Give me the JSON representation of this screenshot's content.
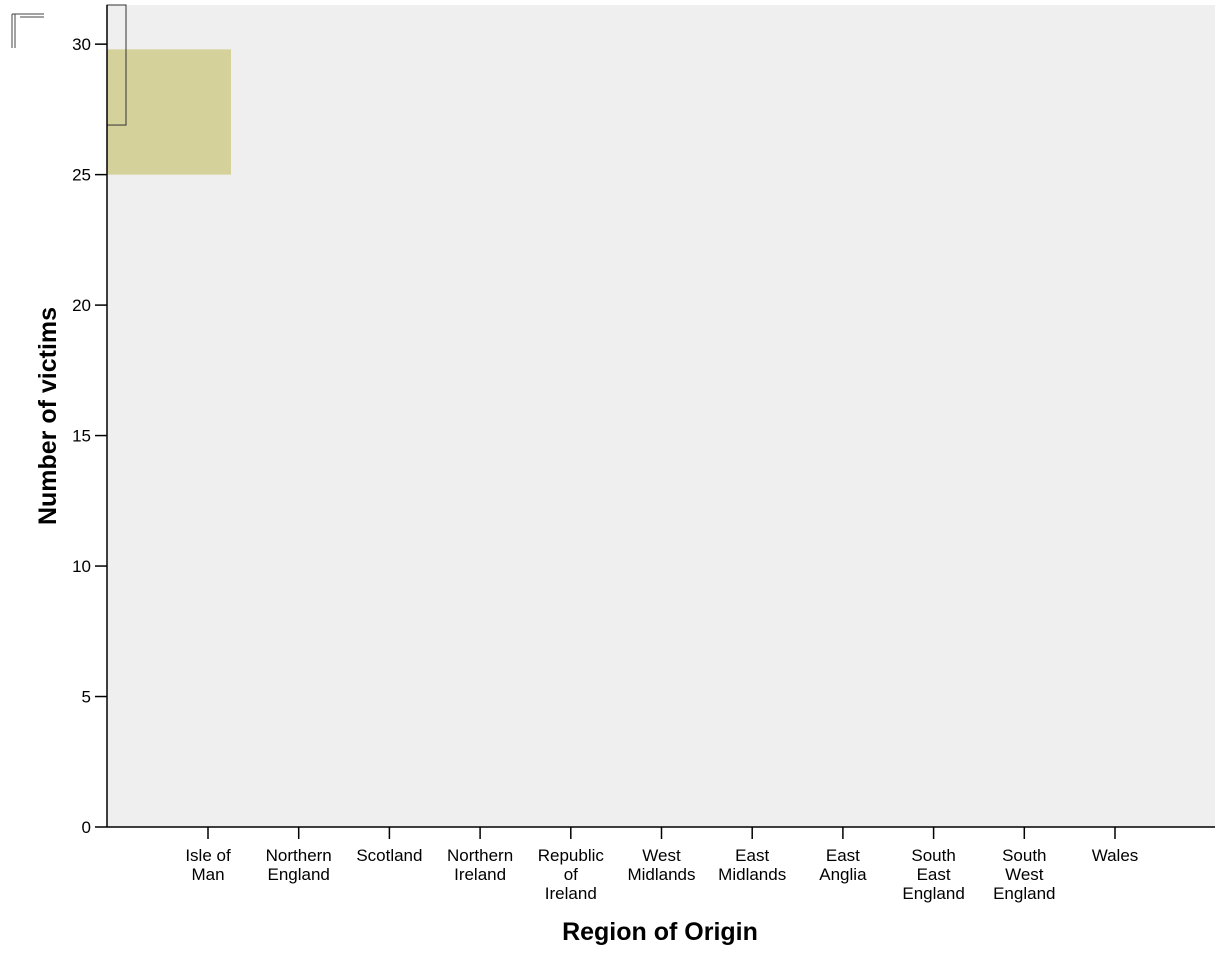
{
  "chart_data": {
    "type": "bar",
    "xlabel": "Region of Origin",
    "ylabel": "Number of victims",
    "ylim": [
      0,
      31.5
    ],
    "yticks": [
      0,
      5,
      10,
      15,
      20,
      25,
      30
    ],
    "categories": [
      [
        "Isle of",
        "Man"
      ],
      [
        "Northern",
        "England"
      ],
      [
        "Scotland"
      ],
      [
        "Northern",
        "Ireland"
      ],
      [
        "Republic",
        "of",
        "Ireland"
      ],
      [
        "West",
        "Midlands"
      ],
      [
        "East",
        "Midlands"
      ],
      [
        "East",
        "Anglia"
      ],
      [
        "South",
        "East",
        "England"
      ],
      [
        "South",
        "West",
        "England"
      ],
      [
        "Wales"
      ]
    ],
    "values": [
      null,
      null,
      null,
      null,
      null,
      null,
      null,
      null,
      null,
      null,
      null
    ],
    "highlight_band": {
      "y_from": 25.0,
      "y_to": 29.8,
      "color": "#d4d19a"
    },
    "outline_bar": {
      "y_from": 26.9,
      "y_to": 31.5,
      "color": "#333333"
    },
    "plot_background": "#efefef",
    "axis_color": "#000000",
    "grid": false
  }
}
